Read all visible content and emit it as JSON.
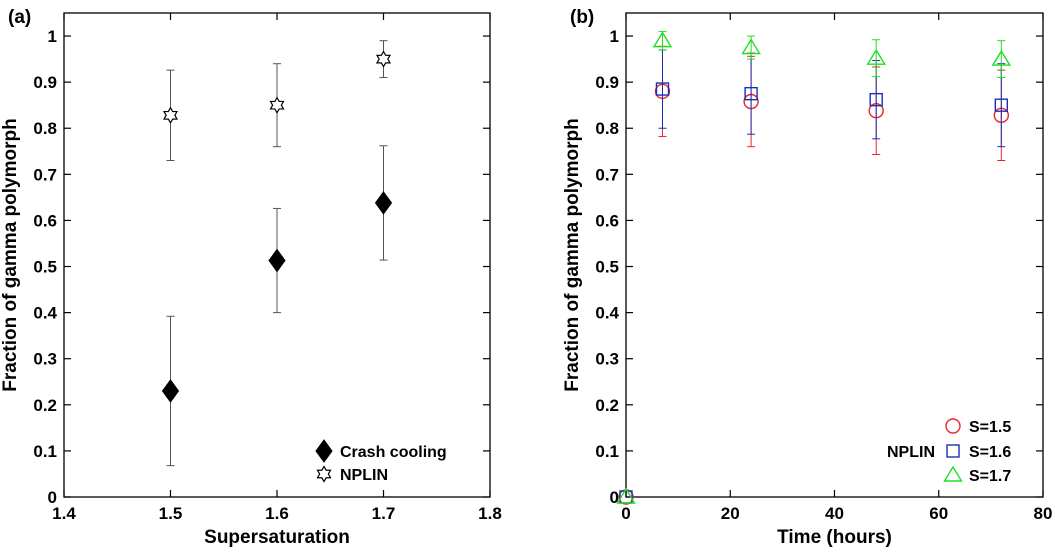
{
  "chart_data": [
    {
      "type": "scatter",
      "panel_label": "(a)",
      "xlabel": "Supersaturation",
      "ylabel": "Fraction of gamma polymorph",
      "xlim": [
        1.4,
        1.8
      ],
      "ylim": [
        0,
        1.05
      ],
      "xticks": [
        1.4,
        1.5,
        1.6,
        1.7,
        1.8
      ],
      "yticks": [
        0,
        0.1,
        0.2,
        0.3,
        0.4,
        0.5,
        0.6,
        0.7,
        0.8,
        0.9,
        1
      ],
      "grid": false,
      "legend_position": "bottom-right",
      "series": [
        {
          "name": "Crash cooling",
          "marker": "diamond-filled",
          "color": "#000000",
          "x": [
            1.5,
            1.6,
            1.7
          ],
          "y": [
            0.23,
            0.513,
            0.638
          ],
          "yerr": [
            0.162,
            0.113,
            0.124
          ]
        },
        {
          "name": "NPLIN",
          "marker": "hexagram-open",
          "color": "#000000",
          "x": [
            1.5,
            1.6,
            1.7
          ],
          "y": [
            0.828,
            0.85,
            0.95
          ],
          "yerr": [
            0.098,
            0.09,
            0.04
          ]
        }
      ]
    },
    {
      "type": "scatter",
      "panel_label": "(b)",
      "xlabel": "Time (hours)",
      "ylabel": "Fraction of gamma polymorph",
      "xlim": [
        0,
        80
      ],
      "ylim": [
        0,
        1.05
      ],
      "xticks": [
        0,
        20,
        40,
        60,
        80
      ],
      "yticks": [
        0,
        0.1,
        0.2,
        0.3,
        0.4,
        0.5,
        0.6,
        0.7,
        0.8,
        0.9,
        1
      ],
      "grid": false,
      "legend_position": "bottom-right",
      "legend_title": "NPLIN",
      "series": [
        {
          "name": "S=1.5",
          "marker": "circle-open",
          "color": "#e8262a",
          "x": [
            0,
            7,
            24,
            48,
            72
          ],
          "y": [
            0,
            0.88,
            0.858,
            0.838,
            0.828
          ],
          "yerr": [
            0,
            0.098,
            0.098,
            0.095,
            0.098
          ]
        },
        {
          "name": "S=1.6",
          "marker": "square-open",
          "color": "#1c2fb3",
          "x": [
            0,
            7,
            24,
            48,
            72
          ],
          "y": [
            0,
            0.885,
            0.875,
            0.862,
            0.85
          ],
          "yerr": [
            0,
            0.085,
            0.088,
            0.085,
            0.09
          ]
        },
        {
          "name": "S=1.7",
          "marker": "triangle-open",
          "color": "#22dd22",
          "x": [
            0,
            7,
            24,
            48,
            72
          ],
          "y": [
            0,
            0.99,
            0.975,
            0.952,
            0.95
          ],
          "yerr": [
            0,
            0.02,
            0.025,
            0.04,
            0.04
          ]
        }
      ]
    }
  ]
}
